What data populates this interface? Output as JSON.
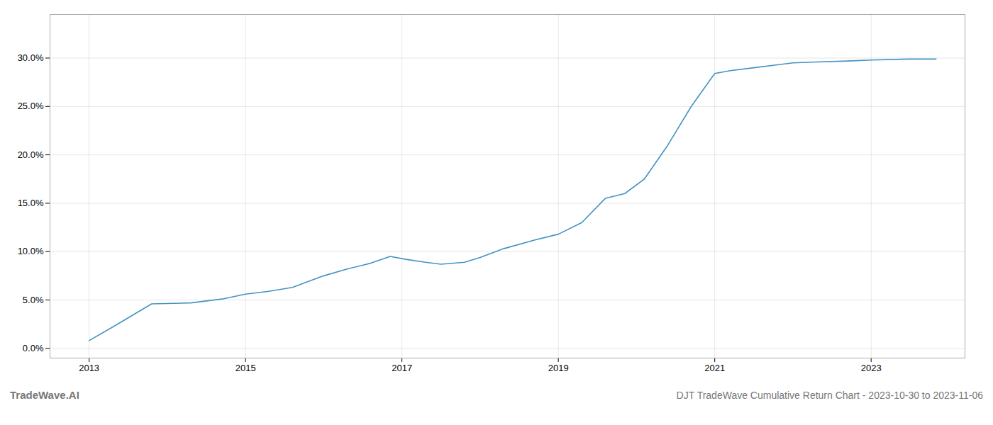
{
  "chart_data": {
    "type": "line",
    "title": "DJT TradeWave Cumulative Return Chart - 2023-10-30 to 2023-11-06",
    "annotations": [
      "TradeWave.AI"
    ],
    "color": "#4393c3",
    "grid": true,
    "x": [
      2013.0,
      2013.3,
      2013.8,
      2014.3,
      2014.7,
      2015.0,
      2015.3,
      2015.6,
      2016.0,
      2016.3,
      2016.6,
      2016.85,
      2017.05,
      2017.3,
      2017.5,
      2017.8,
      2018.0,
      2018.3,
      2018.7,
      2019.0,
      2019.3,
      2019.6,
      2019.85,
      2020.1,
      2020.4,
      2020.7,
      2021.0,
      2021.2,
      2021.5,
      2021.8,
      2022.0,
      2022.3,
      2022.7,
      2023.0,
      2023.5,
      2023.83
    ],
    "values": [
      0.008,
      0.022,
      0.046,
      0.047,
      0.051,
      0.056,
      0.059,
      0.063,
      0.075,
      0.082,
      0.088,
      0.095,
      0.092,
      0.089,
      0.087,
      0.089,
      0.094,
      0.103,
      0.112,
      0.118,
      0.13,
      0.155,
      0.16,
      0.175,
      0.21,
      0.25,
      0.284,
      0.287,
      0.29,
      0.293,
      0.295,
      0.296,
      0.297,
      0.298,
      0.299,
      0.299
    ],
    "xlim": [
      2012.5,
      2024.2
    ],
    "xticks": [
      2013,
      2015,
      2017,
      2019,
      2021,
      2023
    ],
    "ylim": [
      -0.01,
      0.345
    ],
    "yticks": [
      {
        "value": 0.0,
        "label": "0.0%"
      },
      {
        "value": 0.05,
        "label": "5.0%"
      },
      {
        "value": 0.1,
        "label": "10.0%"
      },
      {
        "value": 0.15,
        "label": "15.0%"
      },
      {
        "value": 0.2,
        "label": "20.0%"
      },
      {
        "value": 0.25,
        "label": "25.0%"
      },
      {
        "value": 0.3,
        "label": "30.0%"
      }
    ]
  }
}
